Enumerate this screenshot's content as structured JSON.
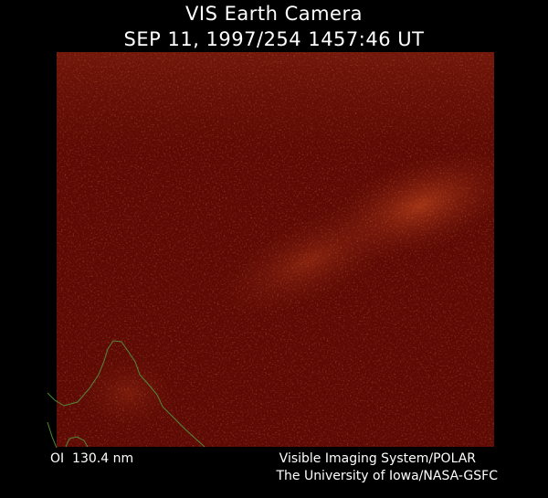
{
  "header": {
    "title": "VIS Earth Camera",
    "timestamp": "SEP 11, 1997/254 1457:46 UT"
  },
  "footer": {
    "wavelength": "OI  130.4 nm",
    "instrument": "Visible Imaging System/POLAR",
    "institution": "The University of Iowa/NASA-GSFC"
  }
}
